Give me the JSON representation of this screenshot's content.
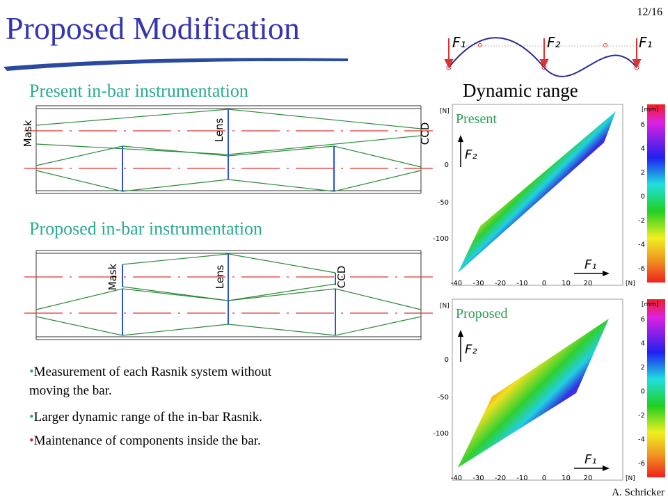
{
  "header": {
    "title": "Proposed Modification",
    "page": "12/16"
  },
  "beam": {
    "labels": [
      "F₁",
      "F₂",
      "F₁"
    ]
  },
  "sections": [
    {
      "heading": "Present in-bar instrumentation",
      "labels": [
        "Mask",
        "Lens",
        "CCD"
      ]
    },
    {
      "heading": "Proposed in-bar instrumentation",
      "labels": [
        "Mask",
        "Lens",
        "CCD"
      ]
    }
  ],
  "bullets": [
    "Measurement of each Rasnik system without moving the bar.",
    "Larger dynamic range of the in-bar Rasnik.",
    "Maintenance of components inside the bar."
  ],
  "dynamic_range": {
    "title": "Dynamic range",
    "plots": [
      {
        "label": "Present",
        "y_unit": "[N]",
        "yticks": [
          "0",
          "-50",
          "-100"
        ],
        "x_unit": "[N]",
        "xticks": [
          "-40",
          "-30",
          "-20",
          "-10",
          "0",
          "10",
          "20"
        ],
        "y_axis": "F₂",
        "x_axis": "F₁",
        "colorbar_unit": "[mm]",
        "colorbar_ticks": [
          "6",
          "4",
          "2",
          "0",
          "-2",
          "-4",
          "-6"
        ]
      },
      {
        "label": "Proposed",
        "y_unit": "[N]",
        "yticks": [
          "0",
          "-50",
          "-100"
        ],
        "x_unit": "[N]",
        "xticks": [
          "-40",
          "-30",
          "-20",
          "-10",
          "0",
          "10",
          "20"
        ],
        "y_axis": "F₂",
        "x_axis": "F₁",
        "colorbar_unit": "[mm]",
        "colorbar_ticks": [
          "6",
          "4",
          "2",
          "0",
          "-2",
          "-4",
          "-6"
        ]
      }
    ]
  },
  "footer": "A. Schricker"
}
